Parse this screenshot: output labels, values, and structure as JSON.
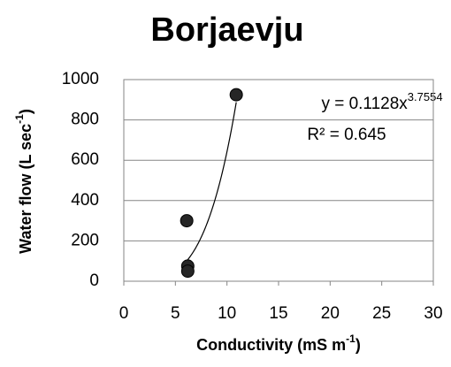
{
  "chart_data": {
    "type": "scatter",
    "title": "Borjaevju",
    "xlabel": {
      "text": "Conductivity (mS m",
      "sup": "-1",
      "end": ")"
    },
    "ylabel": {
      "text": "Water flow (L sec",
      "sup": "-1",
      "end": ")"
    },
    "x": [
      6.1,
      6.2,
      6.2,
      10.9
    ],
    "values": [
      300,
      75,
      50,
      925
    ],
    "color": "#262626",
    "xlim": [
      0,
      30
    ],
    "xticks": [
      0,
      5,
      10,
      15,
      20,
      25,
      30
    ],
    "ylim": [
      0,
      1000
    ],
    "yticks": [
      0,
      200,
      400,
      600,
      800,
      1000
    ],
    "grid": true,
    "trendline": {
      "type": "power",
      "coefficient": 0.1128,
      "exponent": 3.7554,
      "r_squared": 0.645,
      "equation_label": "y = 0.1128x",
      "exponent_label": "3.7554",
      "r_squared_label": "R² = 0.645"
    }
  }
}
